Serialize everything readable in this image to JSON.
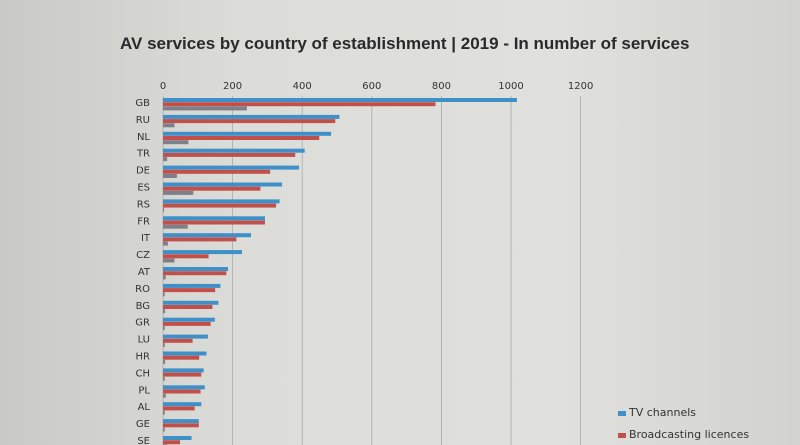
{
  "chart_data": {
    "type": "bar",
    "orientation": "horizontal",
    "title": "AV services by country of establishment | 2019 - In number of services",
    "xlabel": "",
    "ylabel": "",
    "xlim": [
      0,
      1200
    ],
    "xticks": [
      "0",
      "200",
      "400",
      "600",
      "800",
      "1000",
      "1200"
    ],
    "grid": true,
    "legend_placement": "bottom-right",
    "categories": [
      "GB",
      "RU",
      "NL",
      "TR",
      "DE",
      "ES",
      "RS",
      "FR",
      "IT",
      "CZ",
      "AT",
      "RO",
      "BG",
      "GR",
      "LU",
      "HR",
      "CH",
      "PL",
      "AL",
      "GE",
      "SE"
    ],
    "series": [
      {
        "name": "TV channels",
        "color": "#3f8fc9",
        "values": [
          1017,
          507,
          483,
          407,
          391,
          342,
          335,
          293,
          253,
          227,
          187,
          165,
          159,
          149,
          129,
          125,
          117,
          120,
          110,
          103,
          82
        ]
      },
      {
        "name": "Broadcasting licences",
        "color": "#c2504a",
        "values": [
          783,
          495,
          449,
          380,
          308,
          280,
          325,
          293,
          211,
          131,
          182,
          150,
          142,
          137,
          85,
          104,
          110,
          108,
          91,
          103,
          49
        ]
      },
      {
        "name": "",
        "color": "#7f7f8a",
        "values": [
          241,
          33,
          73,
          12,
          40,
          87,
          2,
          71,
          14,
          33,
          8,
          5,
          6,
          5,
          5,
          6,
          5,
          8,
          5,
          5,
          12
        ]
      }
    ]
  }
}
